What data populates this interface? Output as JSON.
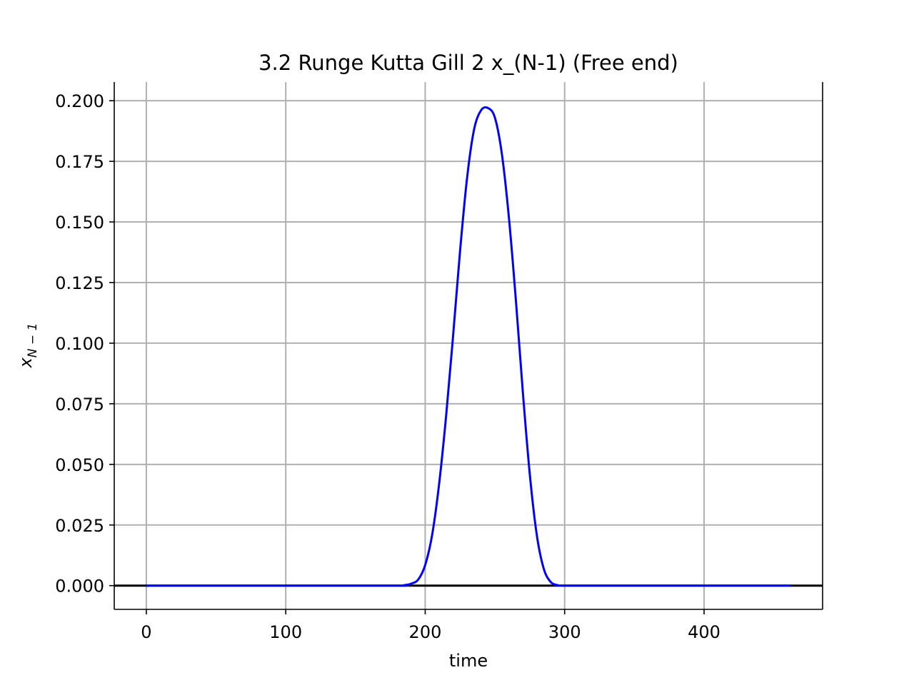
{
  "chart_data": {
    "type": "line",
    "title": "3.2 Runge Kutta Gill 2 x_(N-1) (Free end)",
    "xlabel": "time",
    "ylabel": {
      "base": "x",
      "subscript": "N − 1"
    },
    "xlim": [
      -23,
      485
    ],
    "ylim": [
      -0.0098,
      0.2077
    ],
    "x_ticks": [
      0,
      100,
      200,
      300,
      400
    ],
    "x_tick_labels": [
      "0",
      "100",
      "200",
      "300",
      "400"
    ],
    "y_ticks": [
      0.0,
      0.025,
      0.05,
      0.075,
      0.1,
      0.125,
      0.15,
      0.175,
      0.2
    ],
    "y_tick_labels": [
      "0.000",
      "0.025",
      "0.050",
      "0.075",
      "0.100",
      "0.125",
      "0.150",
      "0.175",
      "0.200"
    ],
    "grid": true,
    "spines": [
      "left",
      "bottom",
      "right"
    ],
    "reference_line": {
      "y": 0,
      "color": "#000000"
    },
    "series": [
      {
        "color": "#0000ff",
        "x": [
          0,
          100,
          180,
          185,
          190,
          195,
          200,
          205,
          210,
          215,
          220,
          225,
          230,
          235,
          240,
          245,
          250,
          255,
          260,
          265,
          270,
          275,
          280,
          285,
          290,
          295,
          300,
          350,
          400,
          462
        ],
        "y": [
          0,
          0,
          0,
          0.0002,
          0.0008,
          0.0025,
          0.0085,
          0.021,
          0.042,
          0.07,
          0.103,
          0.138,
          0.168,
          0.188,
          0.196,
          0.197,
          0.193,
          0.178,
          0.152,
          0.118,
          0.08,
          0.046,
          0.021,
          0.007,
          0.0015,
          0.0002,
          0,
          0,
          0,
          0
        ]
      }
    ]
  }
}
